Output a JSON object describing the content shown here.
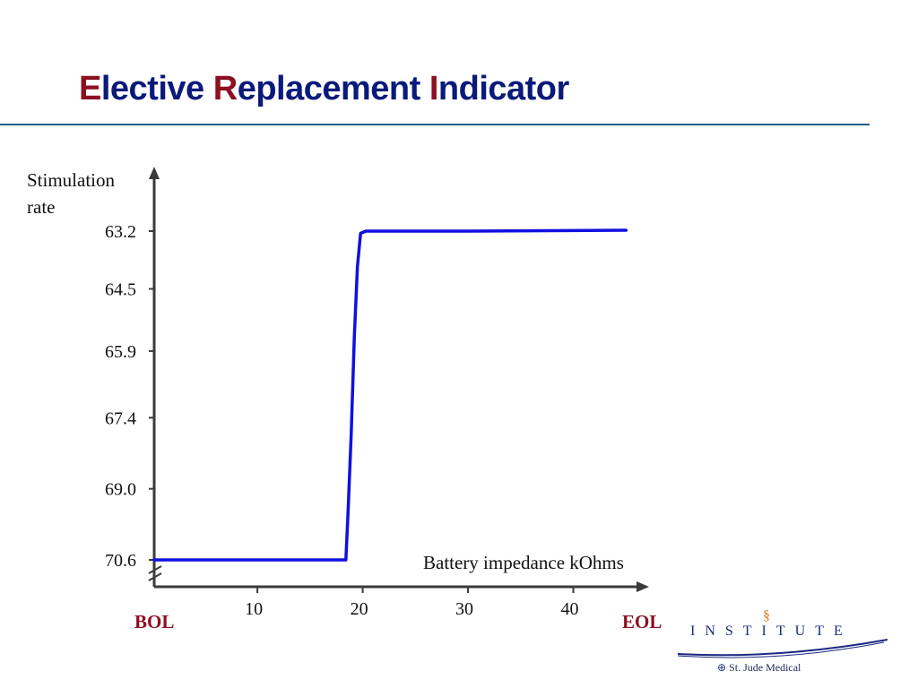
{
  "slide": {
    "title_parts": [
      {
        "initial": "E",
        "rest": "lective "
      },
      {
        "initial": "R",
        "rest": "eplacement "
      },
      {
        "initial": "I",
        "rest": "ndicator"
      }
    ]
  },
  "chart_data": {
    "type": "line",
    "title": "Elective Replacement Indicator",
    "ylabel": "Stimulation rate",
    "xlabel": "Battery impedance kOhms",
    "y_ticks": [
      "63.2",
      "64.5",
      "65.9",
      "67.4",
      "69.0",
      "70.6"
    ],
    "y_tick_values": [
      63.2,
      64.5,
      65.9,
      67.4,
      69.0,
      70.6
    ],
    "y_axis_inverted": true,
    "y_axis_break": true,
    "x_ticks": [
      "10",
      "20",
      "30",
      "40"
    ],
    "x_tick_values": [
      10,
      20,
      30,
      40
    ],
    "xlim": [
      0.2,
      46
    ],
    "ylim": [
      62.2,
      71.5
    ],
    "x_start_label": "BOL",
    "x_end_label": "EOL",
    "series": [
      {
        "color": "#1010e0",
        "points": [
          [
            0.2,
            70.6
          ],
          [
            18.4,
            70.6
          ],
          [
            18.6,
            69.6
          ],
          [
            18.9,
            67.8
          ],
          [
            19.2,
            65.6
          ],
          [
            19.5,
            64.0
          ],
          [
            19.8,
            63.25
          ],
          [
            20.3,
            63.2
          ],
          [
            30.0,
            63.2
          ],
          [
            45.0,
            63.18
          ]
        ]
      }
    ],
    "grid": false,
    "legend": "none"
  },
  "logo": {
    "word": "INSTITUTE",
    "company": "St. Jude Medical"
  }
}
